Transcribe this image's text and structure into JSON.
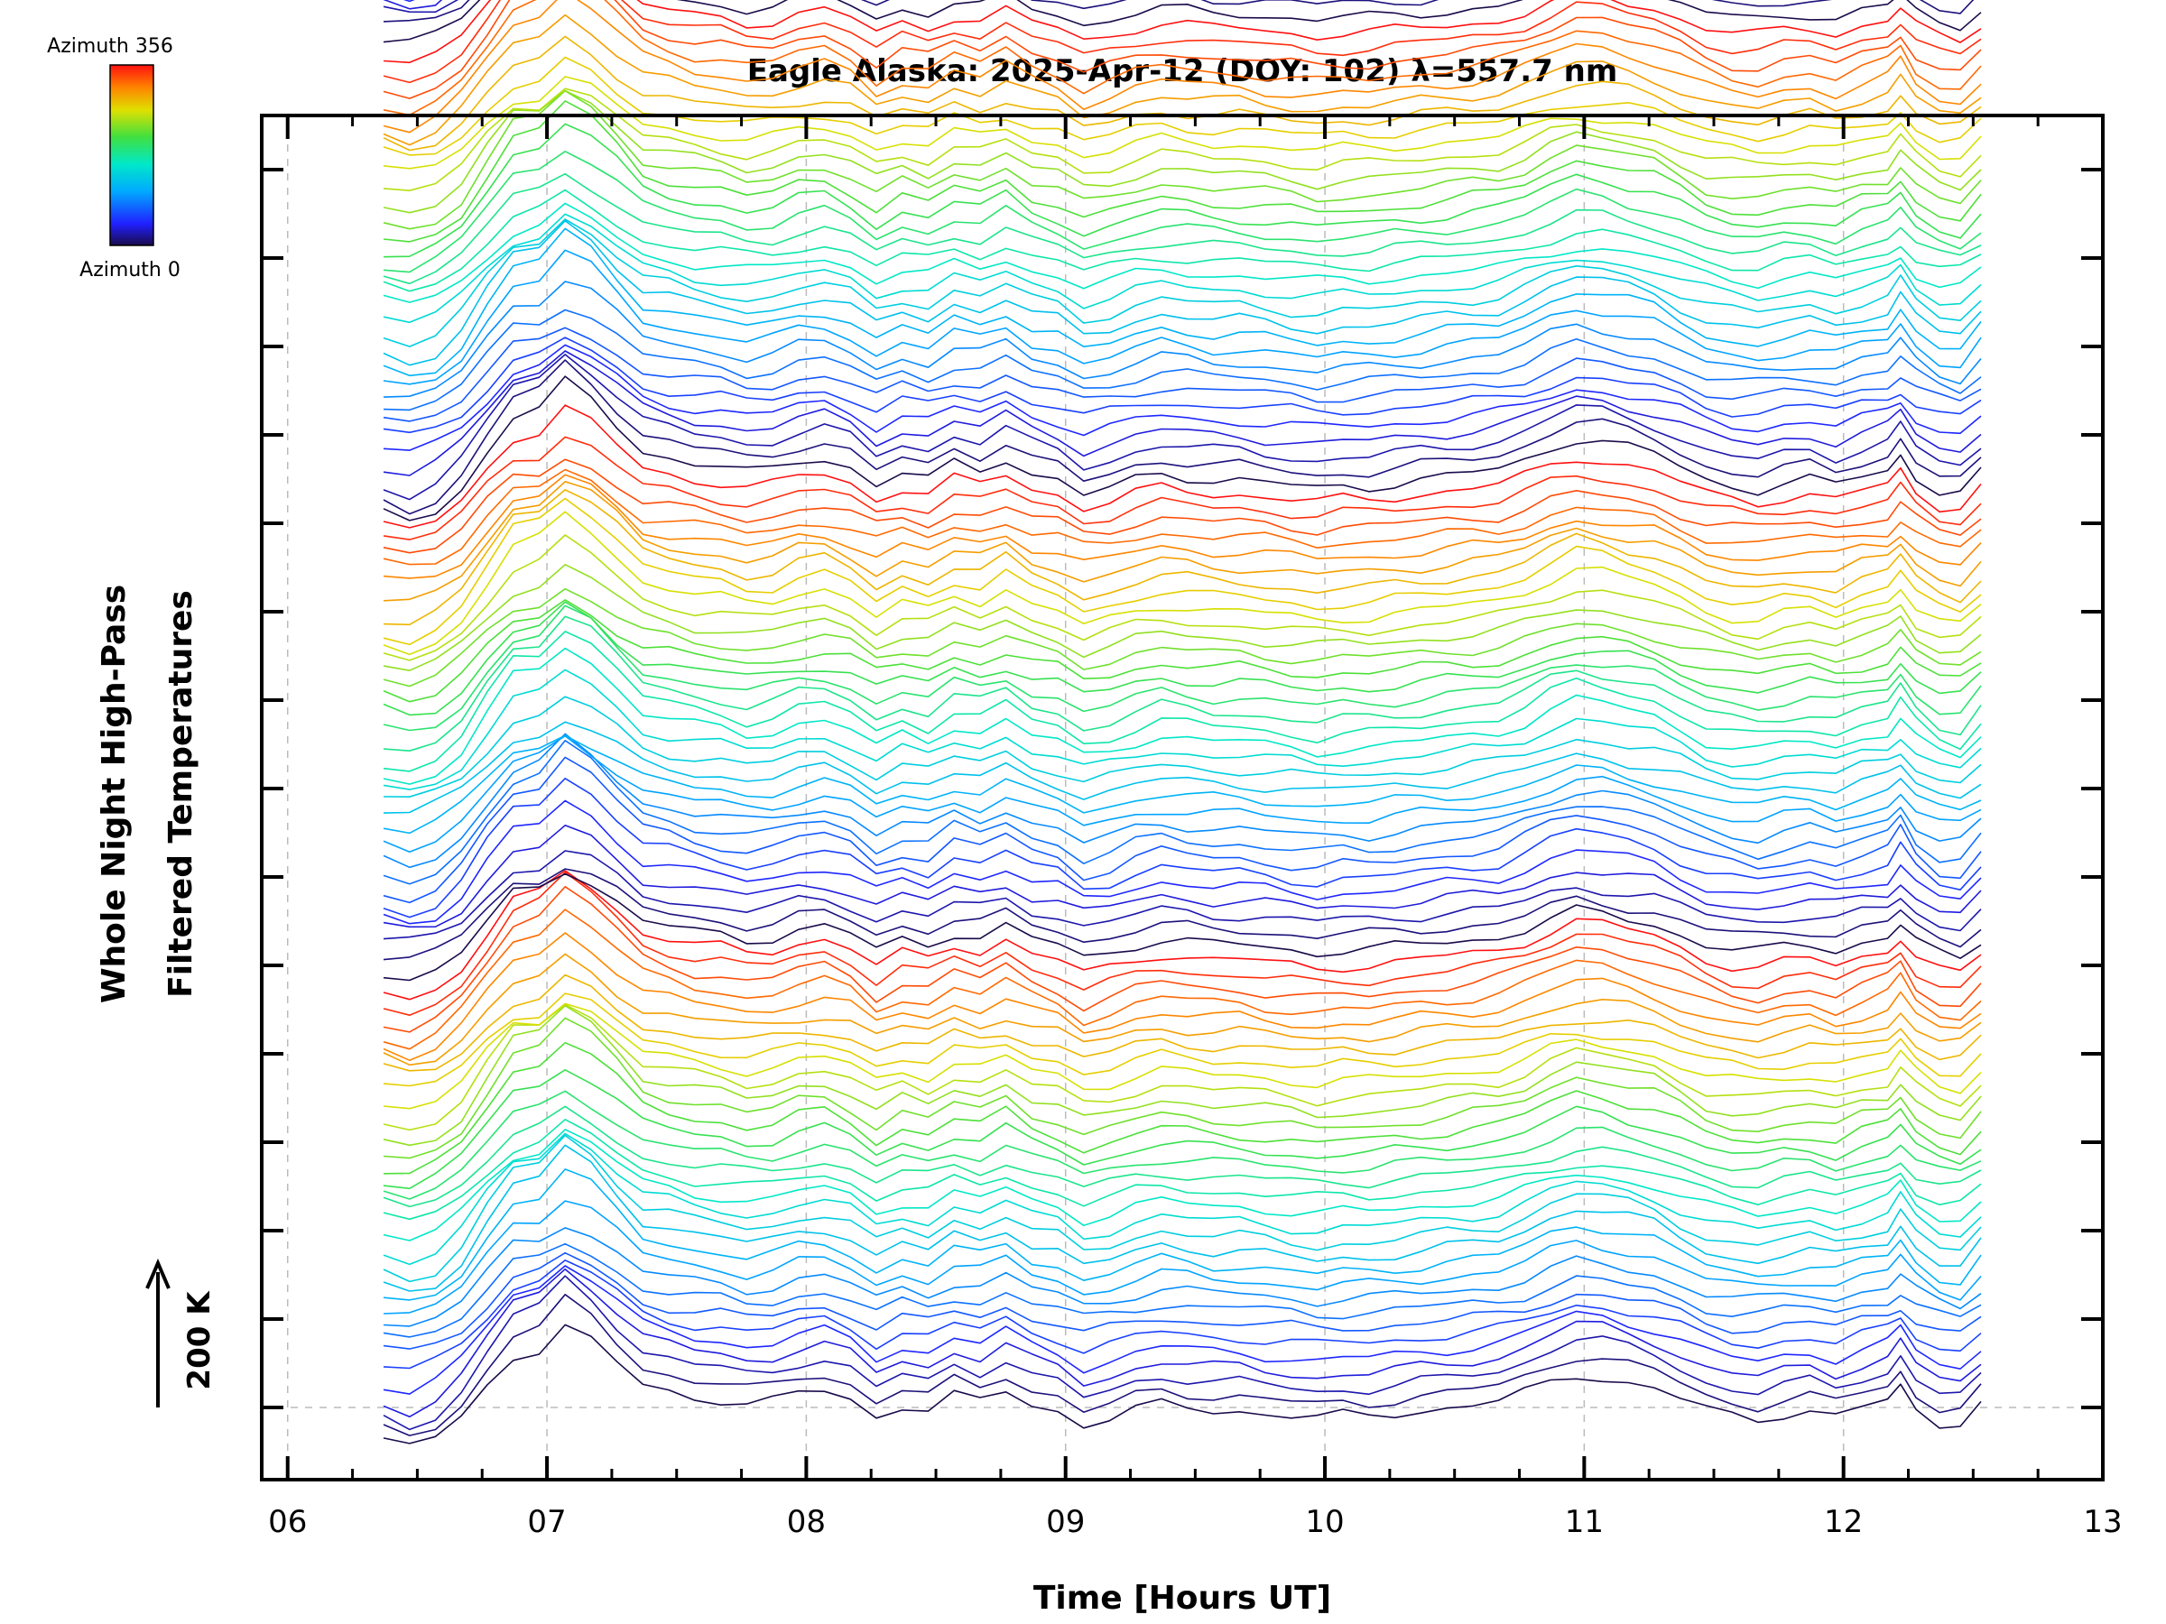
{
  "chart_data": {
    "type": "line",
    "title": "Eagle Alaska: 2025-Apr-12 (DOY: 102) λ=557.7 nm",
    "xlabel": "Time [Hours UT]",
    "ylabel": [
      "Whole Night High-Pass",
      "Filtered Temperatures"
    ],
    "xlim": [
      5.9,
      13
    ],
    "x_ticks": [
      "06",
      "07",
      "08",
      "09",
      "10",
      "11",
      "12",
      "13"
    ],
    "scale_bar": "200 K",
    "colorbar": {
      "top_label": "Azimuth 356",
      "bottom_label": "Azimuth 0",
      "colormap": "rainbow"
    },
    "grid": true,
    "x": [
      6.37,
      6.47,
      6.57,
      6.67,
      6.77,
      6.87,
      6.97,
      7.07,
      7.17,
      7.27,
      7.37,
      7.47,
      7.57,
      7.67,
      7.77,
      7.87,
      7.97,
      8.07,
      8.17,
      8.27,
      8.37,
      8.47,
      8.57,
      8.67,
      8.77,
      8.87,
      8.97,
      9.07,
      9.17,
      9.27,
      9.37,
      9.47,
      9.57,
      9.67,
      9.77,
      9.87,
      9.97,
      10.07,
      10.17,
      10.27,
      10.37,
      10.47,
      10.57,
      10.67,
      10.77,
      10.87,
      10.97,
      11.07,
      11.17,
      11.27,
      11.37,
      11.47,
      11.57,
      11.67,
      11.77,
      11.87,
      11.97,
      12.07,
      12.17,
      12.22,
      12.28,
      12.37,
      12.45,
      12.53
    ],
    "base_series": [
      -60,
      -70,
      -55,
      -20,
      40,
      95,
      105,
      145,
      120,
      80,
      40,
      30,
      20,
      15,
      5,
      10,
      25,
      30,
      15,
      -15,
      5,
      -5,
      20,
      10,
      30,
      5,
      -5,
      -30,
      -20,
      -5,
      5,
      0,
      -5,
      -5,
      -10,
      -15,
      -20,
      -15,
      -15,
      -10,
      -5,
      0,
      5,
      10,
      25,
      45,
      60,
      55,
      45,
      35,
      15,
      -5,
      -15,
      -20,
      -10,
      -5,
      -15,
      0,
      10,
      35,
      0,
      -25,
      -30,
      5
    ],
    "num_series": 128,
    "series_spacing_k": 21.5,
    "azimuth_start": 0,
    "azimuth_end": 356,
    "note_y_scale": "200 K per scale arrow"
  }
}
